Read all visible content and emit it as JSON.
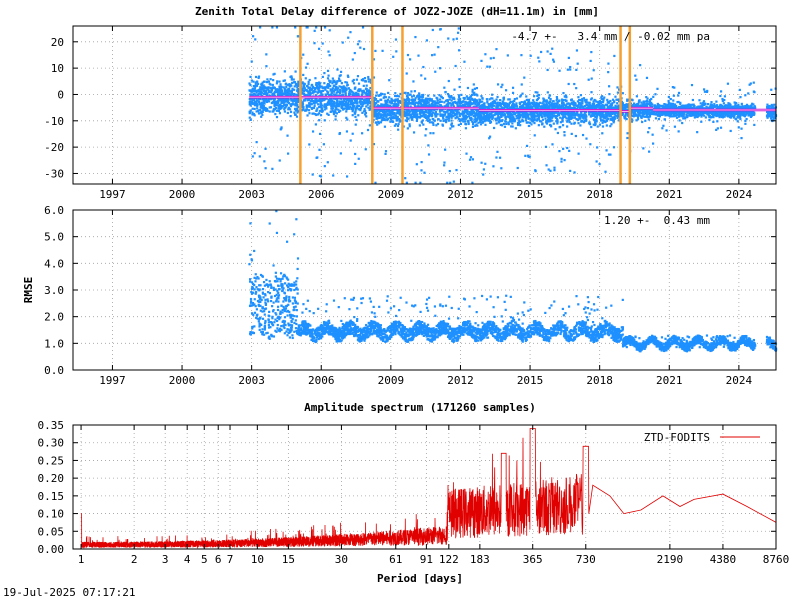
{
  "footer": {
    "timestamp": "19-Jul-2025 07:17:21"
  },
  "colors": {
    "points": "#1e90ff",
    "mean_line": "#cc00cc",
    "mean_line_core": "#ffffff",
    "events": "#f5a030",
    "spectrum": "#e00000"
  },
  "chart_data": [
    {
      "type": "scatter",
      "title": "Zenith Total Delay difference of JOZ2-JOZE (dH=11.1m) in [mm]",
      "annotation": "-4.7 +-   3.4 mm / -0.02 mm pa",
      "xlabel": "",
      "ylabel": "",
      "xlim": [
        1995.3,
        2025.6
      ],
      "ylim": [
        -34,
        26
      ],
      "x_ticks": [
        {
          "label": "1997",
          "value": 1997
        },
        {
          "label": "2000",
          "value": 2000
        },
        {
          "label": "2003",
          "value": 2003
        },
        {
          "label": "2006",
          "value": 2006
        },
        {
          "label": "2009",
          "value": 2009
        },
        {
          "label": "2012",
          "value": 2012
        },
        {
          "label": "2015",
          "value": 2015
        },
        {
          "label": "2018",
          "value": 2018
        },
        {
          "label": "2021",
          "value": 2021
        },
        {
          "label": "2024",
          "value": 2024
        }
      ],
      "y_ticks": [
        {
          "label": "20",
          "value": 20
        },
        {
          "label": "10",
          "value": 10
        },
        {
          "label": "0",
          "value": 0
        },
        {
          "label": "-10",
          "value": -10
        },
        {
          "label": "-20",
          "value": -20
        },
        {
          "label": "-30",
          "value": -30
        }
      ],
      "grid": true,
      "event_lines_x": [
        2005.1,
        2008.2,
        2009.5,
        2018.9,
        2019.3
      ],
      "mean_steps": [
        {
          "x0": 2002.9,
          "x1": 2008.2,
          "y": -1.0
        },
        {
          "x0": 2008.2,
          "x1": 2012.8,
          "y": -5.2
        },
        {
          "x0": 2012.8,
          "x1": 2018.9,
          "y": -6.0
        },
        {
          "x0": 2018.9,
          "x1": 2019.3,
          "y": -6.4
        },
        {
          "x0": 2019.3,
          "x1": 2020.3,
          "y": -5.2
        },
        {
          "x0": 2020.3,
          "x1": 2025.6,
          "y": -5.9
        }
      ],
      "segments": [
        {
          "x0": 2002.9,
          "x1": 2008.2,
          "center": -1.0,
          "spread": 7.5,
          "outlier": 14
        },
        {
          "x0": 2008.2,
          "x1": 2012.8,
          "center": -5.5,
          "spread": 6.5,
          "outlier": 14
        },
        {
          "x0": 2012.8,
          "x1": 2018.9,
          "center": -6.2,
          "spread": 5.5,
          "outlier": 11
        },
        {
          "x0": 2018.9,
          "x1": 2020.3,
          "center": -5.5,
          "spread": 4.0,
          "outlier": 8
        },
        {
          "x0": 2020.3,
          "x1": 2024.7,
          "center": -6.0,
          "spread": 2.8,
          "outlier": 5
        },
        {
          "x0": 2025.2,
          "x1": 2025.6,
          "center": -6.5,
          "spread": 3.0,
          "outlier": 4
        }
      ]
    },
    {
      "type": "scatter",
      "title": "",
      "annotation": "1.20 +-  0.43 mm",
      "xlabel": "",
      "ylabel": "RMSE",
      "xlim": [
        1995.3,
        2025.6
      ],
      "ylim": [
        0,
        6
      ],
      "x_ticks": [
        {
          "label": "1997",
          "value": 1997
        },
        {
          "label": "2000",
          "value": 2000
        },
        {
          "label": "2003",
          "value": 2003
        },
        {
          "label": "2006",
          "value": 2006
        },
        {
          "label": "2009",
          "value": 2009
        },
        {
          "label": "2012",
          "value": 2012
        },
        {
          "label": "2015",
          "value": 2015
        },
        {
          "label": "2018",
          "value": 2018
        },
        {
          "label": "2021",
          "value": 2021
        },
        {
          "label": "2024",
          "value": 2024
        }
      ],
      "y_ticks": [
        {
          "label": "6.0",
          "value": 6
        },
        {
          "label": "5.0",
          "value": 5
        },
        {
          "label": "4.0",
          "value": 4
        },
        {
          "label": "3.0",
          "value": 3
        },
        {
          "label": "2.0",
          "value": 2
        },
        {
          "label": "1.0",
          "value": 1
        },
        {
          "label": "0.0",
          "value": 0
        }
      ],
      "grid": true,
      "segments": [
        {
          "x0": 2002.9,
          "x1": 2005.0,
          "base": 1.3,
          "spread": 2.2,
          "outlier": 6.0
        },
        {
          "x0": 2005.0,
          "x1": 2019.0,
          "base": 1.2,
          "spread": 0.5,
          "outlier": 2.8
        },
        {
          "x0": 2019.0,
          "x1": 2024.7,
          "base": 0.85,
          "spread": 0.3,
          "outlier": 1.3
        },
        {
          "x0": 2025.2,
          "x1": 2025.6,
          "base": 0.8,
          "spread": 0.3,
          "outlier": 1.0
        }
      ]
    },
    {
      "type": "line",
      "title": "Amplitude spectrum (171260 samples)",
      "xlabel": "Period [days]",
      "ylabel": "",
      "x_scale": "log",
      "xlim": [
        0.9,
        8760
      ],
      "ylim": [
        0,
        0.35
      ],
      "legend": "top-right",
      "series": [
        {
          "name": "ZTD-FODITS"
        }
      ],
      "x_ticks": [
        {
          "label": "1",
          "value": 1
        },
        {
          "label": "2",
          "value": 2
        },
        {
          "label": "3",
          "value": 3
        },
        {
          "label": "4",
          "value": 4
        },
        {
          "label": "5",
          "value": 5
        },
        {
          "label": "6",
          "value": 6
        },
        {
          "label": "7",
          "value": 7
        },
        {
          "label": "10",
          "value": 10
        },
        {
          "label": "15",
          "value": 15
        },
        {
          "label": "30",
          "value": 30
        },
        {
          "label": "61",
          "value": 61
        },
        {
          "label": "91",
          "value": 91
        },
        {
          "label": "122",
          "value": 122
        },
        {
          "label": "183",
          "value": 183
        },
        {
          "label": "365",
          "value": 365
        },
        {
          "label": "730",
          "value": 730
        },
        {
          "label": "2190",
          "value": 2190
        },
        {
          "label": "4380",
          "value": 4380
        },
        {
          "label": "8760",
          "value": 8760
        }
      ],
      "y_ticks": [
        {
          "label": "0.35",
          "value": 0.35
        },
        {
          "label": "0.30",
          "value": 0.3
        },
        {
          "label": "0.25",
          "value": 0.25
        },
        {
          "label": "0.20",
          "value": 0.2
        },
        {
          "label": "0.15",
          "value": 0.15
        },
        {
          "label": "0.10",
          "value": 0.1
        },
        {
          "label": "0.05",
          "value": 0.05
        },
        {
          "label": "0.00",
          "value": 0.0
        }
      ],
      "grid": true,
      "peaks": [
        {
          "x": 1.0,
          "y": 0.1
        },
        {
          "x": 365,
          "y": 0.34
        },
        {
          "x": 730,
          "y": 0.29
        },
        {
          "x": 250,
          "y": 0.27
        }
      ],
      "tail": [
        {
          "x": 800,
          "y": 0.18
        },
        {
          "x": 1000,
          "y": 0.15
        },
        {
          "x": 1200,
          "y": 0.1
        },
        {
          "x": 1500,
          "y": 0.11
        },
        {
          "x": 2000,
          "y": 0.15
        },
        {
          "x": 2500,
          "y": 0.12
        },
        {
          "x": 3000,
          "y": 0.14
        },
        {
          "x": 4380,
          "y": 0.155
        },
        {
          "x": 6000,
          "y": 0.12
        },
        {
          "x": 8760,
          "y": 0.075
        }
      ]
    }
  ]
}
